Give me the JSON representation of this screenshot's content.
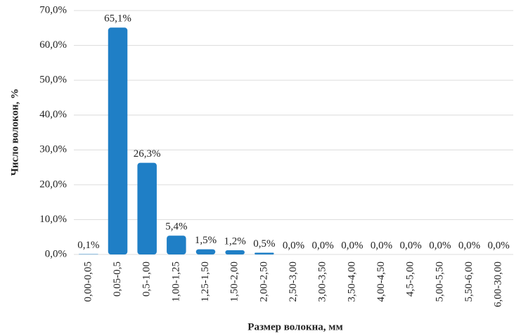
{
  "chart_data": {
    "type": "bar",
    "x_label": "Размер волокна, мм",
    "y_label": "Число волокон, %",
    "categories": [
      "0,00-0,05",
      "0,05-0,5",
      "0,5-1,00",
      "1,00-1,25",
      "1,25-1,50",
      "1,50-2,00",
      "2,00-2,50",
      "2,50-3,00",
      "3,00-3,50",
      "3,50-4,00",
      "4,00-4,50",
      "4,5-5,00",
      "5,00-5,50",
      "5,50-6,00",
      "6,00-30,00"
    ],
    "values": [
      0.1,
      65.1,
      26.3,
      5.4,
      1.5,
      1.2,
      0.5,
      0,
      0,
      0,
      0,
      0,
      0,
      0,
      0
    ],
    "value_labels": [
      "0,1%",
      "65,1%",
      "26,3%",
      "5,4%",
      "1,5%",
      "1,2%",
      "0,5%",
      "0,0%",
      "0,0%",
      "0,0%",
      "0,0%",
      "0,0%",
      "0,0%",
      "0,0%",
      "0,0%"
    ],
    "color": "#1f7fc6",
    "ylim": [
      0,
      70
    ],
    "yticks": [
      {
        "value": 0,
        "label": "0,0%"
      },
      {
        "value": 10,
        "label": "10,0%"
      },
      {
        "value": 20,
        "label": "20,0%"
      },
      {
        "value": 30,
        "label": "30,0%"
      },
      {
        "value": 40,
        "label": "40,0%"
      },
      {
        "value": 50,
        "label": "50,0%"
      },
      {
        "value": 60,
        "label": "60,0%"
      },
      {
        "value": 70,
        "label": "70,0%"
      }
    ],
    "grid": true
  }
}
